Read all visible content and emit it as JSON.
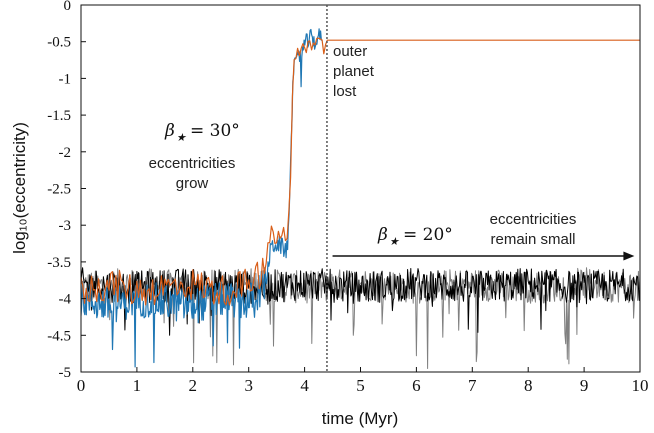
{
  "chart_data": {
    "type": "line",
    "title": "",
    "xlabel": "time (Myr)",
    "ylabel": "log₁₀(eccentricity)",
    "xlim": [
      0,
      10
    ],
    "ylim": [
      -5,
      0
    ],
    "x_ticks": [
      "0",
      "1",
      "2",
      "3",
      "4",
      "5",
      "6",
      "7",
      "8",
      "9",
      "10"
    ],
    "y_ticks": [
      "0",
      "-0.5",
      "-1",
      "-1.5",
      "-2",
      "-2.5",
      "-3",
      "-3.5",
      "-4",
      "-4.5",
      "-5"
    ],
    "grid": false,
    "colors": {
      "beta30_inner": "#1f77b4",
      "beta30_outer": "#d95f1a",
      "beta20_a": "#000000",
      "beta20_b": "#808080",
      "vline": "#555555"
    },
    "series": [
      {
        "key": "beta30_outer",
        "points": [
          [
            0,
            -3.9
          ],
          [
            0.5,
            -3.8
          ],
          [
            1.0,
            -3.9
          ],
          [
            1.5,
            -3.85
          ],
          [
            2.0,
            -3.8
          ],
          [
            2.5,
            -3.9
          ],
          [
            3.0,
            -3.8
          ],
          [
            3.3,
            -3.6
          ],
          [
            3.4,
            -3.05
          ],
          [
            3.5,
            -3.2
          ],
          [
            3.6,
            -3.1
          ],
          [
            3.7,
            -3.25
          ],
          [
            3.75,
            -1.9
          ],
          [
            3.8,
            -0.8
          ],
          [
            3.9,
            -0.65
          ],
          [
            4.0,
            -0.6
          ],
          [
            4.1,
            -0.5
          ],
          [
            4.2,
            -0.55
          ],
          [
            4.3,
            -0.45
          ],
          [
            4.4,
            -0.48
          ],
          [
            10,
            -0.48
          ]
        ]
      },
      {
        "key": "beta30_inner",
        "points": [
          [
            0,
            -4.0
          ],
          [
            0.5,
            -4.1
          ],
          [
            1.0,
            -4.0
          ],
          [
            1.5,
            -4.05
          ],
          [
            2.0,
            -4.1
          ],
          [
            2.5,
            -4.0
          ],
          [
            3.0,
            -4.05
          ],
          [
            3.3,
            -3.8
          ],
          [
            3.4,
            -3.3
          ],
          [
            3.5,
            -3.25
          ],
          [
            3.6,
            -3.3
          ],
          [
            3.7,
            -3.35
          ],
          [
            3.75,
            -2.0
          ],
          [
            3.8,
            -0.9
          ],
          [
            3.9,
            -0.7
          ],
          [
            4.0,
            -0.55
          ],
          [
            4.1,
            -0.45
          ],
          [
            4.2,
            -0.5
          ],
          [
            4.3,
            -0.4
          ]
        ]
      },
      {
        "key": "beta20_a",
        "points": [
          [
            0,
            -3.8
          ],
          [
            1,
            -3.85
          ],
          [
            2,
            -3.8
          ],
          [
            3,
            -3.85
          ],
          [
            4,
            -3.8
          ],
          [
            5,
            -3.85
          ],
          [
            6,
            -3.8
          ],
          [
            7,
            -3.85
          ],
          [
            8,
            -3.8
          ],
          [
            9,
            -3.85
          ],
          [
            10,
            -3.8
          ]
        ]
      },
      {
        "key": "beta20_b",
        "points": [
          [
            0,
            -3.85
          ],
          [
            1,
            -3.8
          ],
          [
            2,
            -3.85
          ],
          [
            3,
            -3.8
          ],
          [
            4,
            -3.85
          ],
          [
            5,
            -3.8
          ],
          [
            6,
            -3.85
          ],
          [
            7,
            -3.8
          ],
          [
            8,
            -3.85
          ],
          [
            9,
            -3.8
          ],
          [
            10,
            -3.85
          ]
        ]
      }
    ],
    "vline_x": 4.4,
    "annotations": {
      "lost_line1": "outer",
      "lost_line2": "planet",
      "lost_line3": "lost",
      "beta30_label": "= 30°",
      "beta20_label": "= 20°",
      "grow_line1": "eccentricities",
      "grow_line2": "grow",
      "small_line1": "eccentricities",
      "small_line2": "remain small",
      "arrow_x": [
        4.5,
        9.9
      ],
      "arrow_y": -3.42
    }
  }
}
